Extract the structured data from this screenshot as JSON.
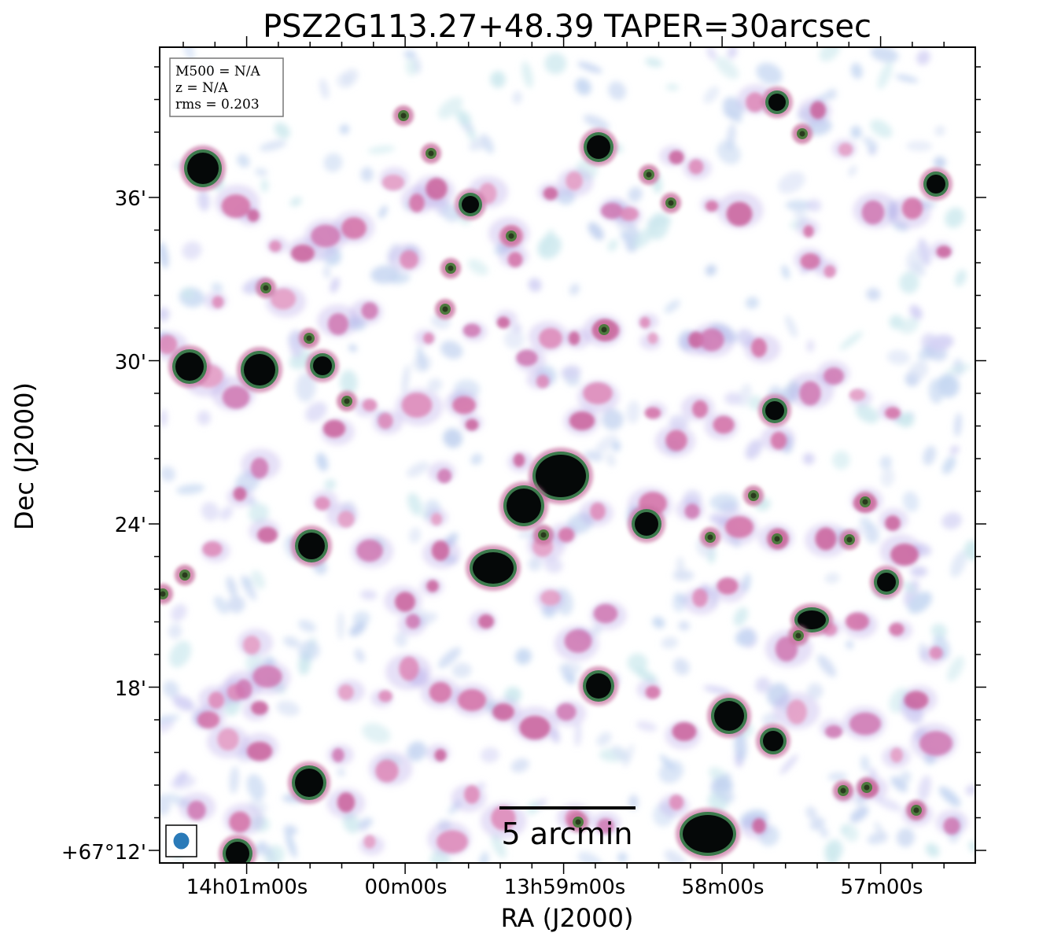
{
  "figure": {
    "title": "PSZ2G113.27+48.39 TAPER=30arcsec",
    "xlabel": "RA (J2000)",
    "ylabel": "Dec (J2000)",
    "info_lines": [
      "M500 = N/A",
      "z = N/A",
      "rms = 0.203"
    ],
    "scalebar_label": "5 arcmin",
    "beam_color": "#2a7ab8",
    "colormap": "cubehelix-like (white → light blue → pink/magenta → green → black)",
    "ra_ticks": [
      {
        "label": "14h01m00s",
        "value": "14h01m00s"
      },
      {
        "label": "00m00s",
        "value": "14h00m00s"
      },
      {
        "label": "13h59m00s",
        "value": "13h59m00s"
      },
      {
        "label": "58m00s",
        "value": "13h58m00s"
      },
      {
        "label": "57m00s",
        "value": "13h57m00s"
      }
    ],
    "dec_ticks": [
      {
        "label": "36'",
        "value": "+67°36'"
      },
      {
        "label": "30'",
        "value": "+67°30'"
      },
      {
        "label": "24'",
        "value": "+67°24'"
      },
      {
        "label": "18'",
        "value": "+67°18'"
      },
      {
        "label": "+67°12'",
        "value": "+67°12'"
      }
    ]
  }
}
